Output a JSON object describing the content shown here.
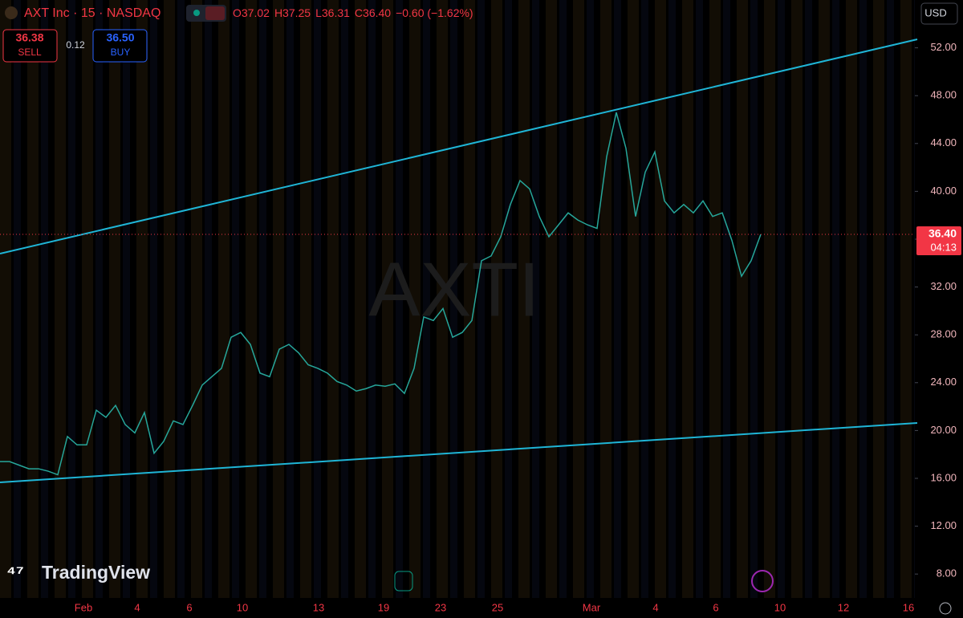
{
  "chart_data": {
    "type": "line",
    "title": "AXT Inc · 15 · NASDAQ",
    "legend": [
      "O37.02",
      "H37.25",
      "L36.31",
      "C36.40",
      "−0.60 (−1.62%)"
    ],
    "watermark": "AXTI",
    "currency": "USD",
    "series": [
      {
        "name": "AXTI",
        "color": "#26a69a",
        "values": [
          17.4,
          17.4,
          17.1,
          16.8,
          16.8,
          16.6,
          16.3,
          19.5,
          18.8,
          18.8,
          21.7,
          21.1,
          22.1,
          20.5,
          19.8,
          21.5,
          18.1,
          19.1,
          20.8,
          20.5,
          22.1,
          23.8,
          24.5,
          25.2,
          27.8,
          28.2,
          27.2,
          24.8,
          24.5,
          26.8,
          27.2,
          26.5,
          25.5,
          25.2,
          24.8,
          24.1,
          23.8,
          23.3,
          23.5,
          23.8,
          23.7,
          23.9,
          23.1,
          25.2,
          29.5,
          29.2,
          30.2,
          27.8,
          28.2,
          29.2,
          34.2,
          34.6,
          36.2,
          38.9,
          40.9,
          40.2,
          37.9,
          36.2,
          37.2,
          38.2,
          37.6,
          37.2,
          36.9,
          42.9,
          46.6,
          43.6,
          37.9,
          41.6,
          43.3,
          39.2,
          38.2,
          38.9,
          38.2,
          39.2,
          37.9,
          38.2,
          35.9,
          32.9,
          34.2,
          36.4
        ]
      }
    ],
    "ylim": [
      6,
      56
    ],
    "yticks": [
      {
        "value": 52,
        "label": "52.00"
      },
      {
        "value": 48,
        "label": "48.00"
      },
      {
        "value": 44,
        "label": "44.00"
      },
      {
        "value": 40,
        "label": "40.00"
      },
      {
        "value": 36,
        "label": "36.00"
      },
      {
        "value": 32,
        "label": "32.00"
      },
      {
        "value": 28,
        "label": "28.00"
      },
      {
        "value": 24,
        "label": "24.00"
      },
      {
        "value": 20,
        "label": "20.00"
      },
      {
        "value": 16,
        "label": "16.00"
      },
      {
        "value": 12,
        "label": "12.00"
      },
      {
        "value": 8,
        "label": "8.00"
      }
    ],
    "xtick_labels": [
      "Feb",
      "4",
      "6",
      "10",
      "13",
      "19",
      "23",
      "25",
      "Mar",
      "4",
      "6",
      "10",
      "12",
      "16"
    ],
    "last_price": {
      "value": 36.4,
      "label": "36.40"
    },
    "countdown": "04:13"
  },
  "trade": {
    "sell_price": "36.38",
    "sell": "SELL",
    "spread": "0.12",
    "buy_price": "36.50",
    "buy": "BUY"
  },
  "brand": "TradingView"
}
